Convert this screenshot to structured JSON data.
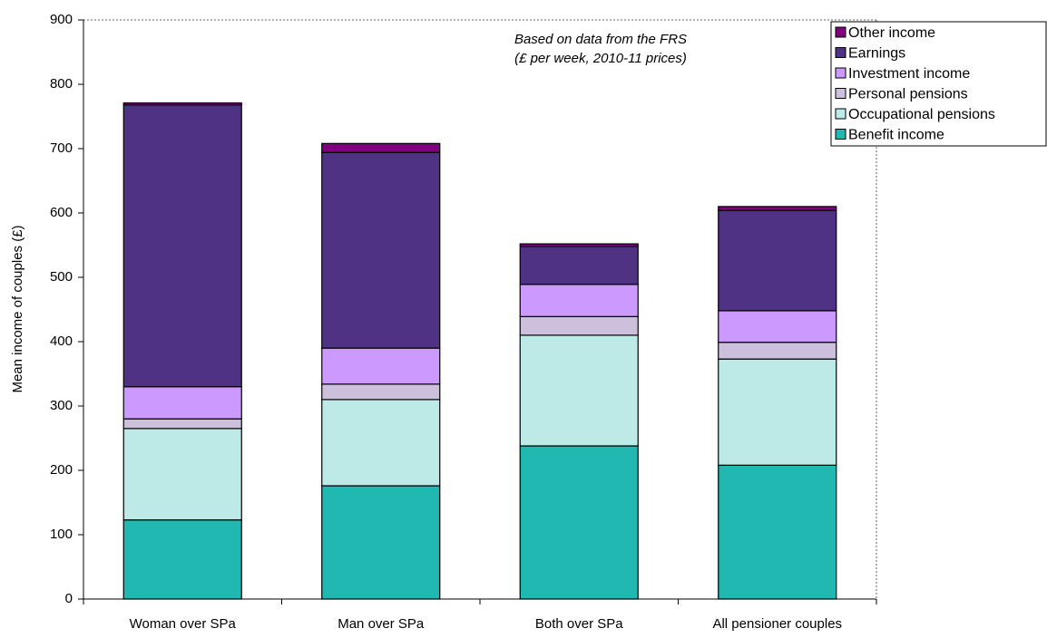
{
  "chart_data": {
    "type": "stacked_bar",
    "y_label": "Mean income of couples (£)",
    "annotations": [
      "Based on data from the FRS",
      "(£ per week, 2010-11 prices)"
    ],
    "categories": [
      "Woman over SPa",
      "Man over SPa",
      "Both over SPa",
      "All pensioner couples"
    ],
    "series": [
      {
        "name": "Benefit income",
        "color": "#20b8b0",
        "values": [
          123,
          176,
          238,
          208
        ]
      },
      {
        "name": "Occupational pensions",
        "color": "#bde9e6",
        "values": [
          142,
          134,
          172,
          165
        ]
      },
      {
        "name": "Personal pensions",
        "color": "#ccc0dd",
        "values": [
          15,
          24,
          29,
          26
        ]
      },
      {
        "name": "Investment income",
        "color": "#cc99ff",
        "values": [
          50,
          56,
          50,
          49
        ]
      },
      {
        "name": "Earnings",
        "color": "#4f3284",
        "values": [
          438,
          304,
          59,
          156
        ]
      },
      {
        "name": "Other income",
        "color": "#800080",
        "values": [
          3,
          14,
          4,
          6
        ]
      }
    ],
    "ylim": [
      0,
      900
    ],
    "yticks": [
      0,
      100,
      200,
      300,
      400,
      500,
      600,
      700,
      800,
      900
    ],
    "legend": "top-right"
  }
}
